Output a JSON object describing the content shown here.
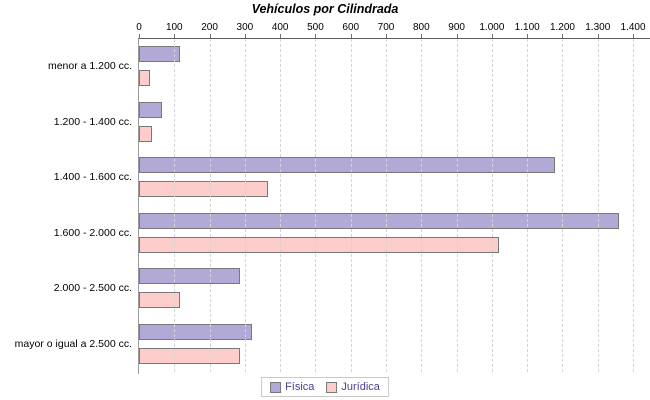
{
  "chart_data": {
    "type": "bar",
    "orientation": "horizontal",
    "title": "Vehículos por Cilindrada",
    "categories": [
      "menor a 1.200 cc.",
      "1.200 - 1.400 cc.",
      "1.400 - 1.600 cc.",
      "1.600 - 2.000 cc.",
      "2.000 - 2.500 cc.",
      "mayor o igual a 2.500 cc."
    ],
    "series": [
      {
        "name": "Física",
        "color": "#b2a9d6",
        "border_color": "#787878",
        "values": [
          115,
          65,
          1180,
          1360,
          285,
          320
        ]
      },
      {
        "name": "Jurídica",
        "color": "#fdcdcb",
        "border_color": "#787878",
        "values": [
          32,
          38,
          365,
          1020,
          115,
          285
        ]
      }
    ],
    "x_ticks": [
      {
        "value": 0,
        "label": "0"
      },
      {
        "value": 100,
        "label": "100"
      },
      {
        "value": 200,
        "label": "200"
      },
      {
        "value": 300,
        "label": "300"
      },
      {
        "value": 400,
        "label": "400"
      },
      {
        "value": 500,
        "label": "500"
      },
      {
        "value": 600,
        "label": "600"
      },
      {
        "value": 700,
        "label": "700"
      },
      {
        "value": 800,
        "label": "800"
      },
      {
        "value": 900,
        "label": "900"
      },
      {
        "value": 1000,
        "label": "1.000"
      },
      {
        "value": 1100,
        "label": "1.100"
      },
      {
        "value": 1200,
        "label": "1.200"
      },
      {
        "value": 1300,
        "label": "1.300"
      },
      {
        "value": 1400,
        "label": "1.400"
      }
    ],
    "xlim": [
      0,
      1400
    ],
    "grid": "vertical-dashed",
    "gridline_color": "#d4d4d4",
    "legend_position": "bottom",
    "legend_text_color": "#4a3c96"
  }
}
